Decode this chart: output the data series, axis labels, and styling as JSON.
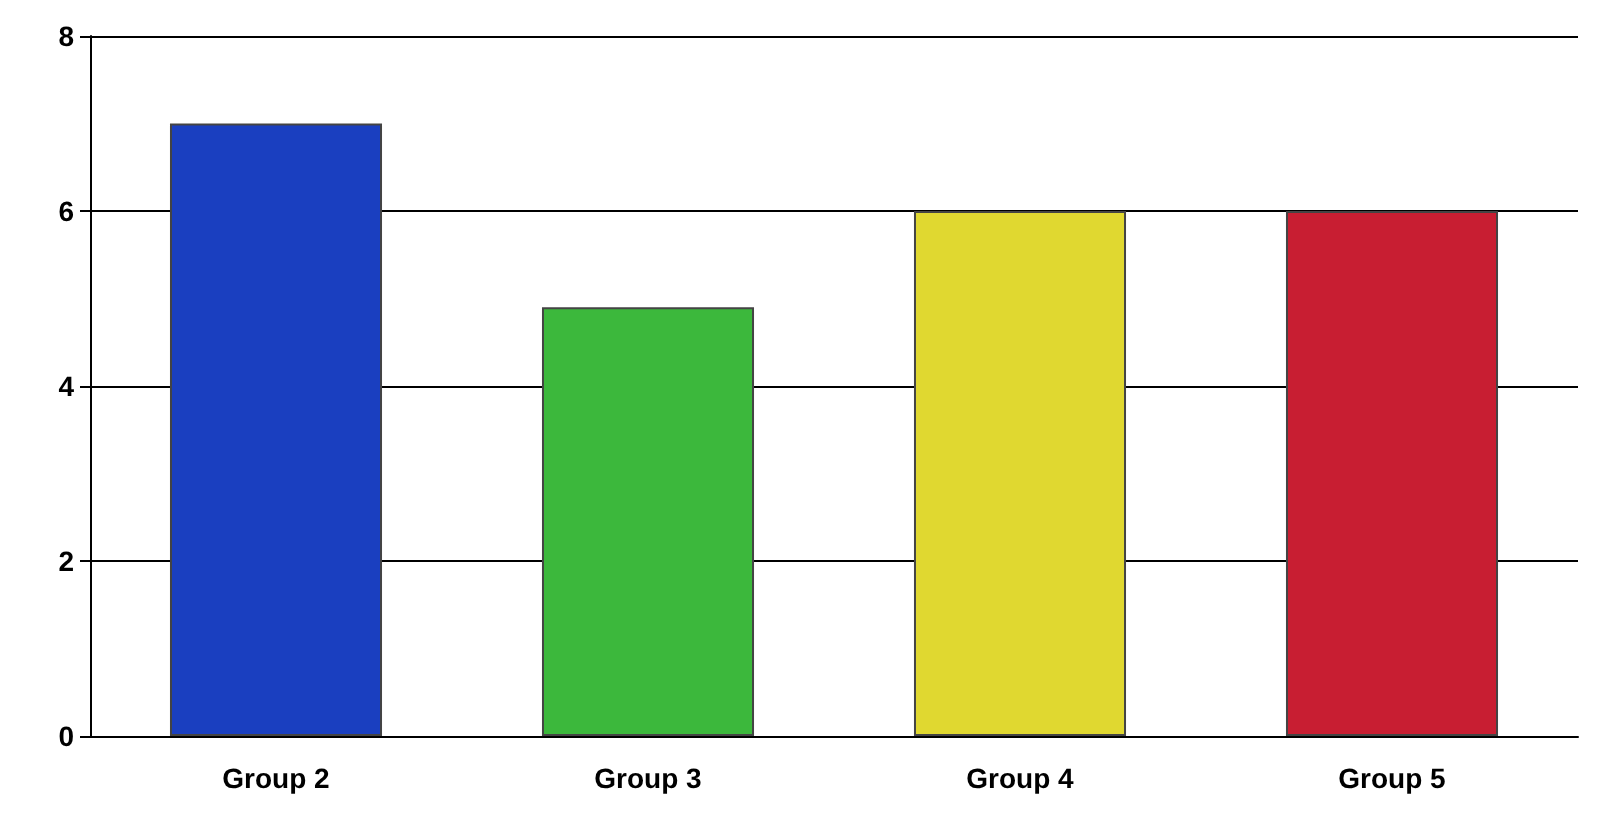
{
  "chart_data": {
    "type": "bar",
    "categories": [
      "Group 2",
      "Group 3",
      "Group 4",
      "Group 5"
    ],
    "values": [
      7,
      4.9,
      6,
      6
    ],
    "colors": [
      "#1a3fc0",
      "#3cb83c",
      "#e0d830",
      "#c81e32"
    ],
    "ylim": [
      0,
      8
    ],
    "yticks": [
      0,
      2,
      4,
      6,
      8
    ],
    "grid": "y"
  }
}
